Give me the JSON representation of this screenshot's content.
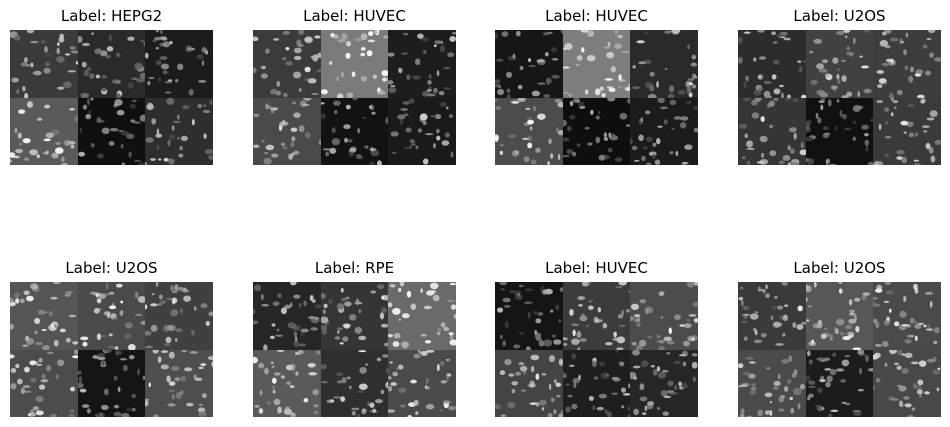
{
  "figure": {
    "panels": [
      {
        "label": "Label: HEPG2",
        "tiles": [
          "#3a3a3a",
          "#2a2a2a",
          "#1c1c1c",
          "#5a5a5a",
          "#0f0f0f",
          "#2e2e2e"
        ]
      },
      {
        "label": "Label: HUVEC",
        "tiles": [
          "#3b3b3b",
          "#7a7a7a",
          "#1d1d1d",
          "#4a4a4a",
          "#121212",
          "#1a1a1a"
        ]
      },
      {
        "label": "Label: HUVEC",
        "tiles": [
          "#161616",
          "#7d7d7d",
          "#2a2a2a",
          "#4c4c4c",
          "#0e0e0e",
          "#1b1b1b"
        ]
      },
      {
        "label": "Label: U2OS",
        "tiles": [
          "#2c2c2c",
          "#414141",
          "#3d3d3d",
          "#353535",
          "#101010",
          "#3a3a3a"
        ]
      },
      {
        "label": "Label: U2OS",
        "tiles": [
          "#555555",
          "#4a4a4a",
          "#404040",
          "#4c4c4c",
          "#141414",
          "#4e4e4e"
        ]
      },
      {
        "label": "Label: RPE",
        "tiles": [
          "#262626",
          "#353535",
          "#6a6a6a",
          "#5a5a5a",
          "#2f2f2f",
          "#4a4a4a"
        ]
      },
      {
        "label": "Label: HUVEC",
        "tiles": [
          "#141414",
          "#3c3c3c",
          "#4c4c4c",
          "#444444",
          "#1e1e1e",
          "#262626"
        ]
      },
      {
        "label": "Label: U2OS",
        "tiles": [
          "#3a3a3a",
          "#575757",
          "#4a4a4a",
          "#4a4a4a",
          "#1c1c1c",
          "#474747"
        ]
      }
    ]
  }
}
